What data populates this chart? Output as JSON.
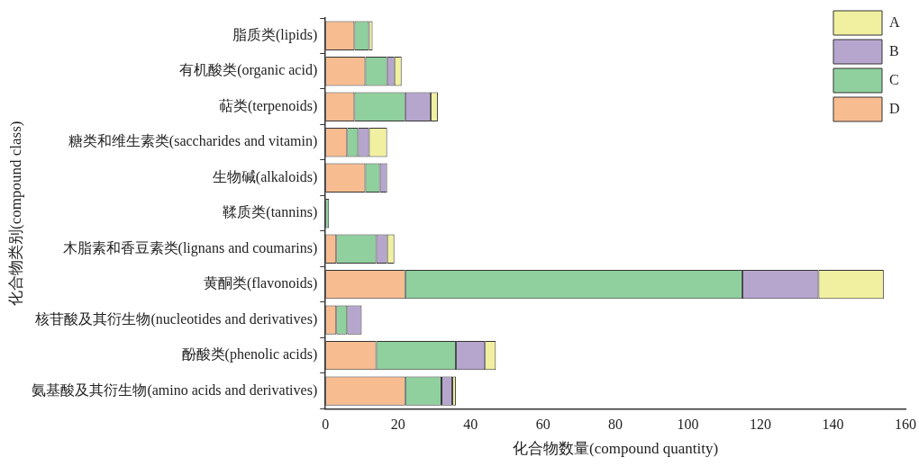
{
  "chart_data": {
    "type": "bar",
    "orientation": "horizontal",
    "stacked": true,
    "xlabel": "化合物数量(compound quantity)",
    "ylabel": "化合物类别(compound class)",
    "categories": [
      "脂质类(lipids)",
      "有机酸类(organic acid)",
      "萜类(terpenoids)",
      "糖类和维生素类(saccharides and vitamin)",
      "生物碱(alkaloids)",
      "鞣质类(tannins)",
      "木脂素和香豆素类(lignans and coumarins)",
      "黄酮类(flavonoids)",
      "核苷酸及其衍生物(nucleotides and derivatives)",
      "酚酸类(phenolic acids)",
      "氨基酸及其衍生物(amino acids and derivatives)"
    ],
    "series": [
      {
        "name": "D",
        "color": "#f7bc90",
        "values": [
          8,
          11,
          8,
          6,
          11,
          0,
          3,
          22,
          3,
          14,
          22
        ]
      },
      {
        "name": "C",
        "color": "#8fd09e",
        "values": [
          4,
          6,
          14,
          3,
          4,
          1,
          11,
          93,
          3,
          22,
          10
        ]
      },
      {
        "name": "B",
        "color": "#b6a6ce",
        "values": [
          0,
          2,
          7,
          3,
          2,
          0,
          3,
          21,
          4,
          8,
          3
        ]
      },
      {
        "name": "A",
        "color": "#f1f0a0",
        "values": [
          1,
          2,
          2,
          5,
          0,
          0,
          2,
          18,
          0,
          3,
          1
        ]
      }
    ],
    "xlim": [
      0,
      160
    ],
    "xticks": [
      0,
      20,
      40,
      60,
      80,
      100,
      120,
      140,
      160
    ],
    "grid": false,
    "legend": "top right"
  }
}
